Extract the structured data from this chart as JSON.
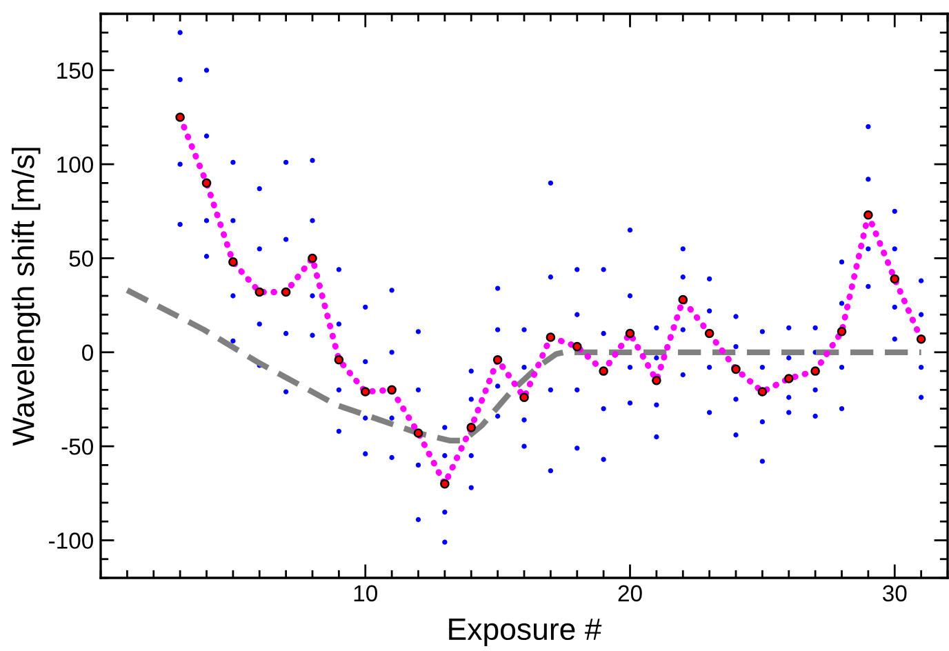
{
  "chart_data": {
    "type": "scatter",
    "xlabel": "Exposure #",
    "ylabel": "Wavelength shift [m/s]",
    "xlim": [
      0,
      32
    ],
    "ylim": [
      -120,
      180
    ],
    "xticks": [
      10,
      20,
      30
    ],
    "yticks": [
      -100,
      -50,
      0,
      50,
      100,
      150
    ],
    "grid": false,
    "series": [
      {
        "color": "#0000ff",
        "marker": "circle",
        "x": [
          3,
          3,
          3,
          3,
          4,
          4,
          4,
          4,
          5,
          5,
          5,
          5,
          6,
          6,
          6,
          6,
          7,
          7,
          7,
          7,
          8,
          8,
          8,
          8,
          9,
          9,
          9,
          9,
          10,
          10,
          10,
          10,
          11,
          11,
          11,
          11,
          12,
          12,
          12,
          12,
          13,
          13,
          13,
          13,
          14,
          14,
          14,
          14,
          15,
          15,
          15,
          15,
          16,
          16,
          16,
          16,
          17,
          17,
          17,
          17,
          18,
          18,
          18,
          18,
          19,
          19,
          19,
          19,
          20,
          20,
          20,
          20,
          21,
          21,
          21,
          21,
          22,
          22,
          22,
          22,
          23,
          23,
          23,
          23,
          24,
          24,
          24,
          24,
          25,
          25,
          25,
          25,
          26,
          26,
          26,
          26,
          27,
          27,
          27,
          27,
          28,
          28,
          28,
          28,
          29,
          29,
          29,
          29,
          30,
          30,
          30,
          30,
          31,
          31,
          31,
          31
        ],
        "values": [
          170,
          145,
          100,
          68,
          150,
          115,
          70,
          51,
          101,
          70,
          30,
          6,
          87,
          55,
          15,
          -7,
          101,
          60,
          10,
          -21,
          102,
          70,
          30,
          9,
          44,
          15,
          -20,
          -42,
          24,
          -5,
          -35,
          -54,
          33,
          0,
          -35,
          -56,
          11,
          -20,
          -60,
          -89,
          -40,
          -55,
          -85,
          -101,
          -10,
          -25,
          -55,
          -72,
          34,
          12,
          -18,
          -34,
          12,
          -8,
          -36,
          -50,
          90,
          40,
          -20,
          -63,
          44,
          20,
          -20,
          -51,
          44,
          10,
          -30,
          -57,
          65,
          30,
          -8,
          -27,
          13,
          -3,
          -28,
          -45,
          55,
          40,
          12,
          -12,
          39,
          22,
          -8,
          -32,
          19,
          3,
          -25,
          -44,
          11,
          -8,
          -37,
          -58,
          13,
          -3,
          -24,
          -32,
          13,
          0,
          -20,
          -34,
          48,
          26,
          -8,
          -30,
          120,
          92,
          55,
          35,
          75,
          55,
          24,
          7,
          38,
          20,
          -8,
          -24
        ]
      },
      {
        "type": "line",
        "color": "#808080",
        "line_style": "dashed",
        "marker": "none",
        "x": [
          1,
          3.9,
          5.9,
          8.9,
          12,
          13.2,
          13.7,
          14.4,
          15.5,
          16.5,
          17.2,
          17.5,
          31
        ],
        "values": [
          33,
          12,
          -5,
          -28,
          -43,
          -47,
          -47,
          -39,
          -21,
          -8,
          -1,
          0,
          0
        ]
      },
      {
        "type": "line",
        "color": "#ff00ff",
        "line_style": "dotted",
        "marker": "none",
        "x": [
          3,
          4,
          5,
          6,
          7,
          8,
          9,
          10,
          11,
          12,
          13,
          14,
          15,
          16,
          17,
          18,
          19,
          20,
          21,
          22,
          23,
          24,
          25,
          26,
          27,
          28,
          29,
          30,
          31
        ],
        "values": [
          125,
          90,
          48,
          32,
          32,
          50,
          -4,
          -21,
          -20,
          -43,
          -70,
          -40,
          -4,
          -24,
          8,
          3,
          -10,
          10,
          -15,
          28,
          10,
          -9,
          -21,
          -14,
          -10,
          11,
          73,
          39,
          7
        ]
      },
      {
        "color": "#ff0000",
        "marker": "circle",
        "x": [
          3,
          4,
          5,
          6,
          7,
          8,
          9,
          10,
          11,
          12,
          13,
          14,
          15,
          16,
          17,
          18,
          19,
          20,
          21,
          22,
          23,
          24,
          25,
          26,
          27,
          28,
          29,
          30,
          31
        ],
        "values": [
          125,
          90,
          48,
          32,
          32,
          50,
          -4,
          -21,
          -20,
          -43,
          -70,
          -40,
          -4,
          -24,
          8,
          3,
          -10,
          10,
          -15,
          28,
          10,
          -9,
          -21,
          -14,
          -10,
          11,
          73,
          39,
          7
        ]
      }
    ]
  }
}
